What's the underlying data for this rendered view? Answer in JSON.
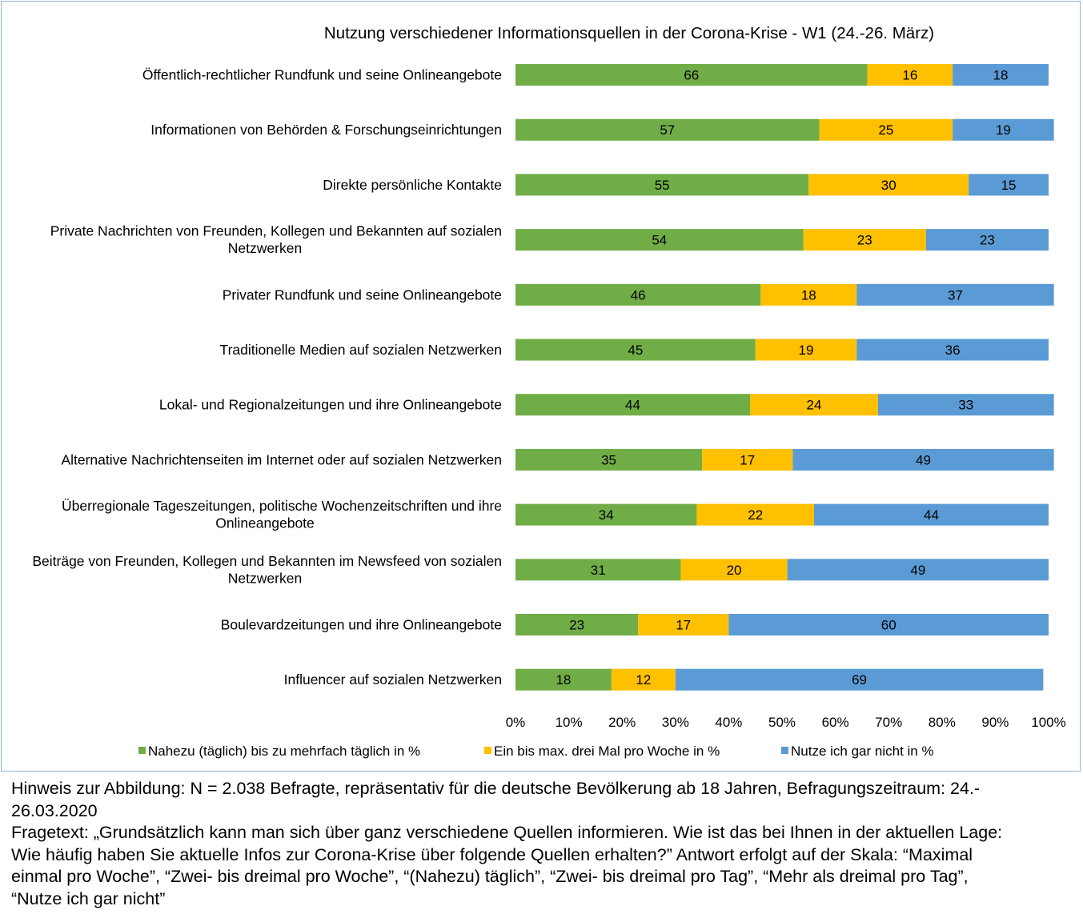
{
  "chart_data": {
    "type": "bar",
    "orientation": "horizontal",
    "stacked": true,
    "title": "Nutzung verschiedener  Informationsquellen in der Corona-Krise - W1 (24.-26. März)",
    "categories": [
      "Öffentlich-rechtlicher Rundfunk und seine Onlineangebote",
      "Informationen von Behörden & Forschungseinrichtungen",
      "Direkte persönliche Kontakte",
      "Private Nachrichten von Freunden, Kollegen und Bekannten auf sozialen Netzwerken",
      "Privater Rundfunk und seine Onlineangebote",
      "Traditionelle Medien auf sozialen Netzwerken",
      "Lokal- und Regionalzeitungen und ihre Onlineangebote",
      "Alternative Nachrichtenseiten im Internet oder auf sozialen Netzwerken",
      "Überregionale Tageszeitungen, politische Wochenzeitschriften und ihre Onlineangebote",
      "Beiträge von Freunden, Kollegen und Bekannten im Newsfeed von sozialen Netzwerken",
      "Boulevardzeitungen und ihre Onlineangebote",
      "Influencer auf sozialen Netzwerken"
    ],
    "category_lines": [
      [
        "Öffentlich-rechtlicher Rundfunk und seine Onlineangebote"
      ],
      [
        "Informationen von Behörden & Forschungseinrichtungen"
      ],
      [
        "Direkte persönliche Kontakte"
      ],
      [
        "Private Nachrichten von Freunden, Kollegen und Bekannten auf sozialen",
        "Netzwerken"
      ],
      [
        "Privater Rundfunk und seine Onlineangebote"
      ],
      [
        "Traditionelle Medien auf sozialen Netzwerken"
      ],
      [
        "Lokal- und Regionalzeitungen und ihre Onlineangebote"
      ],
      [
        "Alternative Nachrichtenseiten im Internet oder auf sozialen Netzwerken"
      ],
      [
        "Überregionale Tageszeitungen, politische Wochenzeitschriften und ihre",
        "Onlineangebote"
      ],
      [
        "Beiträge von Freunden, Kollegen und Bekannten im Newsfeed von sozialen",
        "Netzwerken"
      ],
      [
        "Boulevardzeitungen und ihre Onlineangebote"
      ],
      [
        "Influencer auf sozialen Netzwerken"
      ]
    ],
    "series": [
      {
        "name": "Nahezu (täglich) bis zu mehrfach täglich in %",
        "color": "#70ad47",
        "values": [
          66,
          57,
          55,
          54,
          46,
          45,
          44,
          35,
          34,
          31,
          23,
          18
        ]
      },
      {
        "name": "Ein bis max. drei Mal pro Woche in %",
        "color": "#ffc000",
        "values": [
          16,
          25,
          30,
          23,
          18,
          19,
          24,
          17,
          22,
          20,
          17,
          12
        ]
      },
      {
        "name": "Nutze ich gar nicht  in %",
        "color": "#5b9bd5",
        "values": [
          18,
          19,
          15,
          23,
          37,
          36,
          33,
          49,
          44,
          49,
          60,
          69
        ]
      }
    ],
    "xticks": [
      "0%",
      "10%",
      "20%",
      "30%",
      "40%",
      "50%",
      "60%",
      "70%",
      "80%",
      "90%",
      "100%"
    ],
    "xlim": [
      0,
      100
    ],
    "xlabel": "",
    "ylabel": "",
    "grid": false,
    "legend_position": "bottom"
  },
  "note": {
    "lines": [
      "Hinweis zur Abbildung: N = 2.038 Befragte, repräsentativ für die deutsche Bevölkerung ab 18 Jahren, Befragungszeitraum: 24.-",
      "26.03.2020",
      "Fragetext: „Grundsätzlich kann man sich über ganz verschiedene Quellen informieren. Wie ist das bei Ihnen in der aktuellen Lage:",
      "Wie häufig haben Sie aktuelle Infos zur Corona-Krise über folgende Quellen erhalten?” Antwort erfolgt auf der Skala:  “Maximal",
      "einmal pro Woche”, “Zwei- bis dreimal pro Woche”, “(Nahezu) täglich”, “Zwei- bis dreimal pro Tag”, “Mehr als dreimal pro Tag”,",
      "“Nutze ich gar nicht”"
    ]
  }
}
